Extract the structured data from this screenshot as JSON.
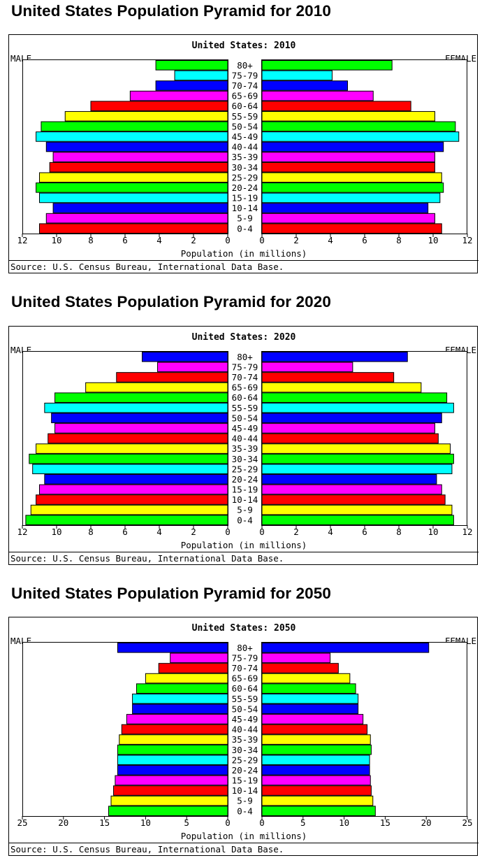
{
  "page": {
    "headings": [
      "United States Population Pyramid for 2010",
      "United States Population Pyramid for 2020",
      "United States Population Pyramid for 2050"
    ]
  },
  "chart_data": [
    {
      "type": "bar",
      "orientation": "horizontal-pyramid",
      "title": "United States: 2010",
      "left_label": "MALE",
      "right_label": "FEMALE",
      "xlabel": "Population (in millions)",
      "source": "Source: U.S. Census Bureau, International Data Base.",
      "xlim": [
        0,
        12
      ],
      "ticks": [
        0,
        2,
        4,
        6,
        8,
        10,
        12
      ],
      "categories": [
        "80+",
        "75-79",
        "70-74",
        "65-69",
        "60-64",
        "55-59",
        "50-54",
        "45-49",
        "40-44",
        "35-39",
        "30-34",
        "25-29",
        "20-24",
        "15-19",
        "10-14",
        "5-9",
        "0-4"
      ],
      "colors": [
        "#00ff00",
        "#00ffff",
        "#0000ff",
        "#ff00ff",
        "#ff0000",
        "#ffff00"
      ],
      "series": [
        {
          "name": "MALE",
          "values": [
            4.2,
            3.1,
            4.2,
            5.7,
            8.0,
            9.5,
            10.9,
            11.2,
            10.6,
            10.2,
            10.4,
            11.0,
            11.2,
            11.0,
            10.2,
            10.6,
            11.0
          ]
        },
        {
          "name": "FEMALE",
          "values": [
            7.6,
            4.1,
            5.0,
            6.5,
            8.7,
            10.1,
            11.3,
            11.5,
            10.6,
            10.1,
            10.1,
            10.5,
            10.6,
            10.4,
            9.7,
            10.1,
            10.5
          ]
        }
      ]
    },
    {
      "type": "bar",
      "orientation": "horizontal-pyramid",
      "title": "United States: 2020",
      "left_label": "MALE",
      "right_label": "FEMALE",
      "xlabel": "Population (in millions)",
      "source": "Source: U.S. Census Bureau, International Data Base.",
      "xlim": [
        0,
        12
      ],
      "ticks": [
        0,
        2,
        4,
        6,
        8,
        10,
        12
      ],
      "categories": [
        "80+",
        "75-79",
        "70-74",
        "65-69",
        "60-64",
        "55-59",
        "50-54",
        "45-49",
        "40-44",
        "35-39",
        "30-34",
        "25-29",
        "20-24",
        "15-19",
        "10-14",
        "5-9",
        "0-4"
      ],
      "colors": [
        "#0000ff",
        "#ff00ff",
        "#ff0000",
        "#ffff00",
        "#00ff00",
        "#00ffff"
      ],
      "series": [
        {
          "name": "MALE",
          "values": [
            5.0,
            4.1,
            6.5,
            8.3,
            10.1,
            10.7,
            10.3,
            10.1,
            10.5,
            11.2,
            11.6,
            11.4,
            10.7,
            11.0,
            11.2,
            11.5,
            11.8
          ]
        },
        {
          "name": "FEMALE",
          "values": [
            8.5,
            5.3,
            7.7,
            9.3,
            10.8,
            11.2,
            10.5,
            10.1,
            10.3,
            11.0,
            11.2,
            11.1,
            10.2,
            10.5,
            10.7,
            11.1,
            11.2
          ]
        }
      ]
    },
    {
      "type": "bar",
      "orientation": "horizontal-pyramid",
      "title": "United States: 2050",
      "left_label": "MALE",
      "right_label": "FEMALE",
      "xlabel": "Population (in millions)",
      "source": "Source: U.S. Census Bureau, International Data Base.",
      "xlim": [
        0,
        25
      ],
      "ticks": [
        0,
        5,
        10,
        15,
        20,
        25
      ],
      "categories": [
        "80+",
        "75-79",
        "70-74",
        "65-69",
        "60-64",
        "55-59",
        "50-54",
        "45-49",
        "40-44",
        "35-39",
        "30-34",
        "25-29",
        "20-24",
        "15-19",
        "10-14",
        "5-9",
        "0-4"
      ],
      "colors": [
        "#0000ff",
        "#ff00ff",
        "#ff0000",
        "#ffff00",
        "#00ff00",
        "#00ffff"
      ],
      "series": [
        {
          "name": "MALE",
          "values": [
            13.4,
            7.0,
            8.4,
            10.0,
            11.1,
            11.6,
            11.6,
            12.3,
            12.9,
            13.2,
            13.4,
            13.4,
            13.4,
            13.7,
            13.9,
            14.2,
            14.5
          ]
        },
        {
          "name": "FEMALE",
          "values": [
            20.3,
            8.3,
            9.3,
            10.7,
            11.4,
            11.7,
            11.7,
            12.3,
            12.8,
            13.2,
            13.3,
            13.1,
            13.1,
            13.2,
            13.3,
            13.5,
            13.8
          ]
        }
      ]
    }
  ]
}
